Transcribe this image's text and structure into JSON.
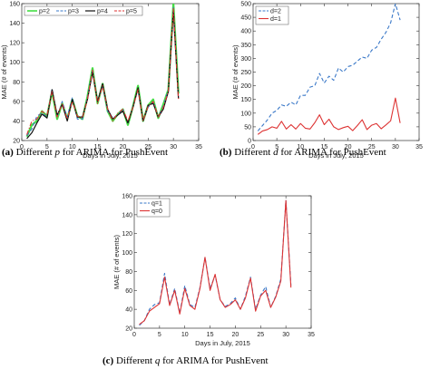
{
  "chart_data": [
    {
      "type": "line",
      "caption_label": "(a)",
      "caption_pre": "Different ",
      "caption_var": "p",
      "caption_post": " for ARIMA for PushEvent",
      "xlabel": "Days in July, 2015",
      "ylabel": "MAE (# of events)",
      "xlim": [
        0,
        35
      ],
      "ylim": [
        20,
        160
      ],
      "xticks": [
        0,
        5,
        10,
        15,
        20,
        25,
        30,
        35
      ],
      "yticks": [
        20,
        40,
        60,
        80,
        100,
        120,
        140,
        160
      ],
      "legend_position": "top-left",
      "x": [
        1,
        2,
        3,
        4,
        5,
        6,
        7,
        8,
        9,
        10,
        11,
        12,
        13,
        14,
        15,
        16,
        17,
        18,
        19,
        20,
        21,
        22,
        23,
        24,
        25,
        26,
        27,
        28,
        29,
        30,
        31
      ],
      "series": [
        {
          "name": "p=2",
          "color": "#44dd44",
          "dash": "solid",
          "width": 2.2,
          "values": [
            24,
            36,
            40,
            50,
            45,
            70,
            42,
            58,
            42,
            62,
            45,
            42,
            65,
            94,
            58,
            78,
            50,
            40,
            47,
            52,
            36,
            55,
            76,
            40,
            56,
            62,
            43,
            57,
            72,
            160,
            68
          ]
        },
        {
          "name": "p=3",
          "color": "#3a78c8",
          "dash": "dashed",
          "width": 1.1,
          "values": [
            25,
            32,
            45,
            48,
            44,
            73,
            44,
            60,
            44,
            64,
            42,
            42,
            64,
            92,
            60,
            76,
            50,
            43,
            46,
            52,
            38,
            55,
            72,
            40,
            54,
            60,
            44,
            55,
            72,
            156,
            62
          ]
        },
        {
          "name": "p=4",
          "color": "#111111",
          "dash": "solid",
          "width": 1.2,
          "values": [
            22,
            28,
            38,
            47,
            43,
            72,
            46,
            57,
            40,
            62,
            44,
            44,
            62,
            90,
            60,
            78,
            52,
            42,
            46,
            50,
            38,
            54,
            74,
            40,
            56,
            58,
            44,
            52,
            70,
            153,
            63
          ]
        },
        {
          "name": "p=5",
          "color": "#dd3333",
          "dash": "dashdot",
          "width": 1.1,
          "values": [
            26,
            40,
            42,
            50,
            46,
            70,
            44,
            58,
            42,
            60,
            45,
            43,
            62,
            92,
            58,
            76,
            52,
            40,
            48,
            52,
            40,
            54,
            72,
            40,
            55,
            60,
            44,
            54,
            70,
            155,
            62
          ]
        }
      ]
    },
    {
      "type": "line",
      "caption_label": "(b)",
      "caption_pre": "Different ",
      "caption_var": "d",
      "caption_post": " for ARIMA for PushEvent",
      "xlabel": "Days in July, 2015",
      "ylabel": "MAE (# of events)",
      "xlim": [
        0,
        35
      ],
      "ylim": [
        0,
        500
      ],
      "xticks": [
        0,
        5,
        10,
        15,
        20,
        25,
        30,
        35
      ],
      "yticks": [
        0,
        50,
        100,
        150,
        200,
        250,
        300,
        350,
        400,
        450,
        500
      ],
      "legend_position": "top-left",
      "x": [
        1,
        2,
        3,
        4,
        5,
        6,
        7,
        8,
        9,
        10,
        11,
        12,
        13,
        14,
        15,
        16,
        17,
        18,
        19,
        20,
        21,
        22,
        23,
        24,
        25,
        26,
        27,
        28,
        29,
        30,
        31
      ],
      "series": [
        {
          "name": "d=2",
          "color": "#3a78c8",
          "dash": "dashed",
          "width": 1.1,
          "values": [
            35,
            55,
            75,
            100,
            110,
            130,
            125,
            140,
            130,
            165,
            165,
            195,
            200,
            245,
            210,
            235,
            220,
            265,
            250,
            270,
            275,
            290,
            305,
            300,
            330,
            340,
            370,
            395,
            430,
            500,
            440
          ]
        },
        {
          "name": "d=1",
          "color": "#dd3333",
          "dash": "solid",
          "width": 1.1,
          "values": [
            22,
            35,
            40,
            50,
            45,
            70,
            42,
            58,
            42,
            62,
            45,
            42,
            65,
            94,
            58,
            78,
            50,
            40,
            47,
            52,
            36,
            55,
            76,
            40,
            56,
            62,
            43,
            57,
            72,
            155,
            64
          ]
        }
      ]
    },
    {
      "type": "line",
      "caption_label": "(c)",
      "caption_pre": "Different ",
      "caption_var": "q",
      "caption_post": " for ARIMA for PushEvent",
      "xlabel": "Days in July, 2015",
      "ylabel": "MAE (# of events)",
      "xlim": [
        0,
        35
      ],
      "ylim": [
        20,
        160
      ],
      "xticks": [
        0,
        5,
        10,
        15,
        20,
        25,
        30,
        35
      ],
      "yticks": [
        20,
        40,
        60,
        80,
        100,
        120,
        140,
        160
      ],
      "legend_position": "top-left",
      "x": [
        1,
        2,
        3,
        4,
        5,
        6,
        7,
        8,
        9,
        10,
        11,
        12,
        13,
        14,
        15,
        16,
        17,
        18,
        19,
        20,
        21,
        22,
        23,
        24,
        25,
        26,
        27,
        28,
        29,
        30,
        31
      ],
      "series": [
        {
          "name": "q=1",
          "color": "#3a78c8",
          "dash": "dashed",
          "width": 1.1,
          "values": [
            23,
            28,
            40,
            45,
            47,
            78,
            45,
            62,
            36,
            65,
            45,
            42,
            63,
            95,
            62,
            76,
            50,
            43,
            46,
            52,
            40,
            54,
            74,
            40,
            55,
            64,
            42,
            54,
            72,
            155,
            65
          ]
        },
        {
          "name": "q=0",
          "color": "#dd3333",
          "dash": "solid",
          "width": 1.1,
          "values": [
            24,
            28,
            38,
            42,
            46,
            74,
            44,
            60,
            35,
            62,
            44,
            40,
            62,
            95,
            60,
            77,
            50,
            42,
            45,
            50,
            40,
            52,
            73,
            38,
            54,
            60,
            42,
            53,
            70,
            155,
            63
          ]
        }
      ]
    }
  ]
}
